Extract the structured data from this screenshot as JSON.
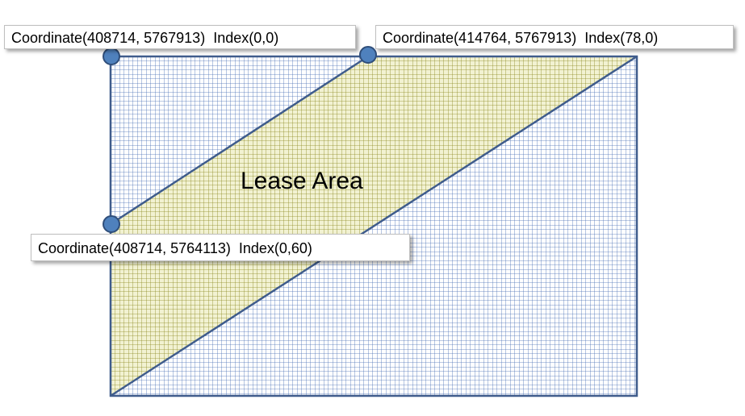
{
  "colors": {
    "blue_grid": "#4a6fb5",
    "lease_grid": "#8c8a22",
    "lease_fill": "#f2f2d2",
    "outline": "#3f5c8c",
    "marker_fill": "#4f81bd",
    "marker_stroke": "#2f4e7a"
  },
  "grid": {
    "columns": 78,
    "rows": 60
  },
  "points": [
    {
      "id": "top-left",
      "coordinate": [
        408714,
        5767913
      ],
      "index": [
        0,
        0
      ],
      "label": "Coordinate(408714, 5767913)  Index(0,0)"
    },
    {
      "id": "top-right",
      "coordinate": [
        414764,
        5767913
      ],
      "index": [
        78,
        0
      ],
      "label": "Coordinate(414764, 5767913)  Index(78,0)"
    },
    {
      "id": "bottom-left",
      "coordinate": [
        408714,
        5764113
      ],
      "index": [
        0,
        60
      ],
      "label": "Coordinate(408714, 5764113)  Index(0,60)"
    }
  ],
  "lease_area": {
    "label": "Lease Area"
  }
}
